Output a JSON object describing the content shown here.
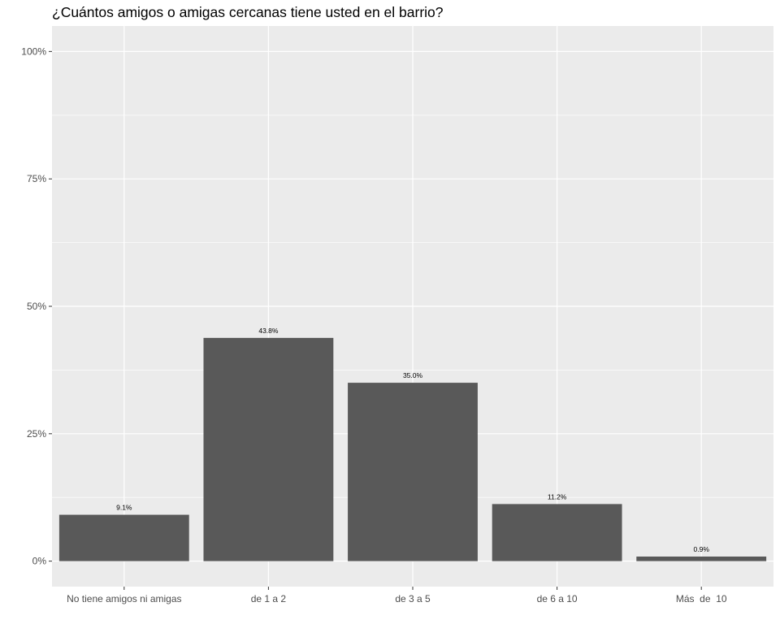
{
  "chart_data": {
    "type": "bar",
    "title": "¿Cuántos amigos o amigas cercanas tiene usted en el barrio?",
    "categories": [
      "No tiene amigos ni amigas",
      "de 1 a 2",
      "de 3 a 5",
      "de 6 a 10",
      "Más  de  10"
    ],
    "values": [
      9.1,
      43.8,
      35.0,
      11.2,
      0.9
    ],
    "data_labels": [
      "9.1%",
      "43.8%",
      "35.0%",
      "11.2%",
      "0.9%"
    ],
    "y_ticks": [
      0,
      25,
      50,
      75,
      100
    ],
    "y_tick_labels": [
      "0%",
      "25%",
      "50%",
      "75%",
      "100%"
    ],
    "ylim": [
      -5,
      105
    ],
    "xlabel": "",
    "ylabel": "",
    "grid": true,
    "colors": {
      "bar": "#595959",
      "panel": "#ebebeb",
      "grid": "#ffffff",
      "tick_text": "#4d4d4d",
      "tick_mark": "#333333"
    }
  }
}
